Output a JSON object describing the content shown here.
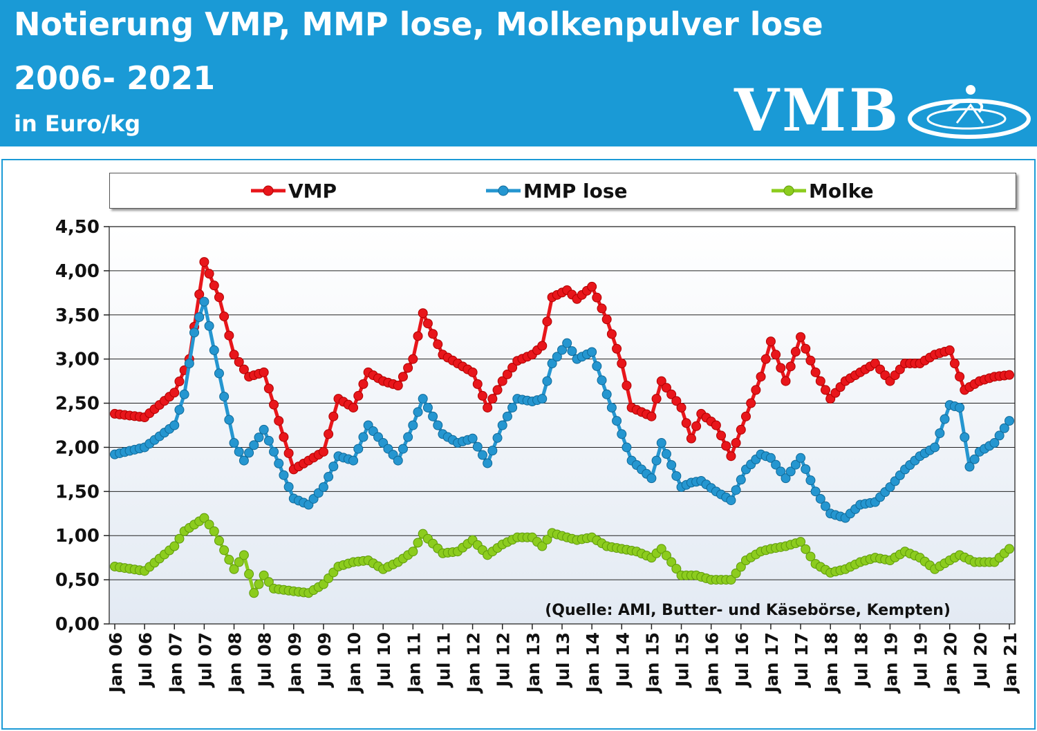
{
  "header": {
    "title_line1": "Notierung VMP, MMP lose, Molkenpulver lose",
    "title_line2": "2006- 2021",
    "unit": "in Euro/kg",
    "logo_text": "VMB",
    "logo_icon": "vmb-swirl-logo-icon",
    "background_color": "#1a9ad6"
  },
  "chart_data": {
    "type": "line",
    "title": "Notierung VMP, MMP lose, Molkenpulver lose 2006- 2021",
    "ylabel": "in Euro/kg",
    "xlabel": "",
    "ylim": [
      0,
      4.5
    ],
    "grid": true,
    "legend_position": "top",
    "x_tick_labels": [
      "Jan 06",
      "Jul 06",
      "Jan 07",
      "Jul 07",
      "Jan 08",
      "Jul 08",
      "Jan 09",
      "Jul 09",
      "Jan 10",
      "Jul 10",
      "Jan 11",
      "Jul 11",
      "Jan 12",
      "Jul 12",
      "Jan 13",
      "Jul 13",
      "Jan 14",
      "Jul 14",
      "Jan 15",
      "Jul 15",
      "Jan 16",
      "Jul 16",
      "Jan 17",
      "Jul 17",
      "Jan 18",
      "Jul 18",
      "Jan 19",
      "Jul 19",
      "Jan 20",
      "Jul 20",
      "Jan 21"
    ],
    "y_tick_labels": [
      "0,00",
      "0,50",
      "1,00",
      "1,50",
      "2,00",
      "2,50",
      "3,00",
      "3,50",
      "4,00",
      "4,50"
    ],
    "annotation": "(Quelle: AMI, Butter- und Käsebörse, Kempten)",
    "series": [
      {
        "name": "VMP",
        "color": "#e8161b",
        "points": [
          [
            "Jan 06",
            2.38
          ],
          [
            "Jul 06",
            2.34
          ],
          [
            "Jan 07",
            2.62
          ],
          [
            "Apr 07",
            3.0
          ],
          [
            "Jul 07",
            4.1
          ],
          [
            "Oct 07",
            3.7
          ],
          [
            "Jan 08",
            3.05
          ],
          [
            "Apr 08",
            2.8
          ],
          [
            "Jul 08",
            2.85
          ],
          [
            "Oct 08",
            2.3
          ],
          [
            "Jan 09",
            1.75
          ],
          [
            "Apr 09",
            1.85
          ],
          [
            "Jul 09",
            1.95
          ],
          [
            "Oct 09",
            2.55
          ],
          [
            "Jan 10",
            2.45
          ],
          [
            "Apr 10",
            2.85
          ],
          [
            "Jul 10",
            2.75
          ],
          [
            "Oct 10",
            2.7
          ],
          [
            "Jan 11",
            3.0
          ],
          [
            "Mar 11",
            3.52
          ],
          [
            "Jul 11",
            3.05
          ],
          [
            "Oct 11",
            2.95
          ],
          [
            "Jan 12",
            2.85
          ],
          [
            "Apr 12",
            2.45
          ],
          [
            "Jul 12",
            2.75
          ],
          [
            "Oct 12",
            2.98
          ],
          [
            "Jan 13",
            3.05
          ],
          [
            "Mar 13",
            3.15
          ],
          [
            "May 13",
            3.7
          ],
          [
            "Aug 13",
            3.78
          ],
          [
            "Oct 13",
            3.68
          ],
          [
            "Jan 14",
            3.82
          ],
          [
            "Apr 14",
            3.45
          ],
          [
            "Jul 14",
            2.95
          ],
          [
            "Sep 14",
            2.45
          ],
          [
            "Jan 15",
            2.35
          ],
          [
            "Mar 15",
            2.75
          ],
          [
            "Jul 15",
            2.45
          ],
          [
            "Sep 15",
            2.1
          ],
          [
            "Nov 15",
            2.38
          ],
          [
            "Feb 16",
            2.25
          ],
          [
            "May 16",
            1.9
          ],
          [
            "Aug 16",
            2.35
          ],
          [
            "Nov 16",
            2.8
          ],
          [
            "Jan 17",
            3.2
          ],
          [
            "Apr 17",
            2.75
          ],
          [
            "Jul 17",
            3.25
          ],
          [
            "Oct 17",
            2.85
          ],
          [
            "Jan 18",
            2.55
          ],
          [
            "Apr 18",
            2.75
          ],
          [
            "Jul 18",
            2.85
          ],
          [
            "Oct 18",
            2.95
          ],
          [
            "Jan 19",
            2.75
          ],
          [
            "Apr 19",
            2.95
          ],
          [
            "Jul 19",
            2.95
          ],
          [
            "Oct 19",
            3.05
          ],
          [
            "Jan 20",
            3.1
          ],
          [
            "Apr 20",
            2.65
          ],
          [
            "Jul 20",
            2.75
          ],
          [
            "Oct 20",
            2.8
          ],
          [
            "Jan 21",
            2.82
          ]
        ]
      },
      {
        "name": "MMP lose",
        "color": "#2596d0",
        "points": [
          [
            "Jan 06",
            1.92
          ],
          [
            "Jul 06",
            2.0
          ],
          [
            "Jan 07",
            2.25
          ],
          [
            "Mar 07",
            2.6
          ],
          [
            "May 07",
            3.3
          ],
          [
            "Jul 07",
            3.65
          ],
          [
            "Sep 07",
            3.1
          ],
          [
            "Jan 08",
            2.05
          ],
          [
            "Mar 08",
            1.85
          ],
          [
            "Jul 08",
            2.2
          ],
          [
            "Sep 08",
            1.95
          ],
          [
            "Jan 09",
            1.42
          ],
          [
            "Apr 09",
            1.35
          ],
          [
            "Jul 09",
            1.55
          ],
          [
            "Oct 09",
            1.9
          ],
          [
            "Jan 10",
            1.85
          ],
          [
            "Apr 10",
            2.25
          ],
          [
            "Jul 10",
            2.05
          ],
          [
            "Oct 10",
            1.85
          ],
          [
            "Jan 11",
            2.25
          ],
          [
            "Mar 11",
            2.55
          ],
          [
            "Jul 11",
            2.15
          ],
          [
            "Oct 11",
            2.05
          ],
          [
            "Jan 12",
            2.1
          ],
          [
            "Apr 12",
            1.82
          ],
          [
            "Jul 12",
            2.25
          ],
          [
            "Oct 12",
            2.55
          ],
          [
            "Jan 13",
            2.52
          ],
          [
            "Mar 13",
            2.55
          ],
          [
            "May 13",
            2.95
          ],
          [
            "Aug 13",
            3.18
          ],
          [
            "Oct 13",
            3.0
          ],
          [
            "Jan 14",
            3.08
          ],
          [
            "Apr 14",
            2.6
          ],
          [
            "Jul 14",
            2.15
          ],
          [
            "Sep 14",
            1.85
          ],
          [
            "Jan 15",
            1.65
          ],
          [
            "Mar 15",
            2.05
          ],
          [
            "Jul 15",
            1.55
          ],
          [
            "Sep 15",
            1.6
          ],
          [
            "Nov 15",
            1.62
          ],
          [
            "Feb 16",
            1.5
          ],
          [
            "May 16",
            1.4
          ],
          [
            "Aug 16",
            1.75
          ],
          [
            "Nov 16",
            1.92
          ],
          [
            "Jan 17",
            1.88
          ],
          [
            "Apr 17",
            1.65
          ],
          [
            "Jul 17",
            1.88
          ],
          [
            "Oct 17",
            1.5
          ],
          [
            "Jan 18",
            1.25
          ],
          [
            "Apr 18",
            1.2
          ],
          [
            "Jul 18",
            1.35
          ],
          [
            "Oct 18",
            1.38
          ],
          [
            "Jan 19",
            1.55
          ],
          [
            "Apr 19",
            1.75
          ],
          [
            "Jul 19",
            1.9
          ],
          [
            "Oct 19",
            2.0
          ],
          [
            "Jan 20",
            2.48
          ],
          [
            "Mar 20",
            2.45
          ],
          [
            "May 20",
            1.78
          ],
          [
            "Jul 20",
            1.95
          ],
          [
            "Oct 20",
            2.05
          ],
          [
            "Jan 21",
            2.3
          ]
        ]
      },
      {
        "name": "Molke",
        "color": "#8ccc1e",
        "points": [
          [
            "Jan 06",
            0.65
          ],
          [
            "Jul 06",
            0.6
          ],
          [
            "Jan 07",
            0.88
          ],
          [
            "Mar 07",
            1.05
          ],
          [
            "Jul 07",
            1.2
          ],
          [
            "Sep 07",
            1.05
          ],
          [
            "Jan 08",
            0.62
          ],
          [
            "Mar 08",
            0.78
          ],
          [
            "May 08",
            0.35
          ],
          [
            "Jul 08",
            0.55
          ],
          [
            "Sep 08",
            0.4
          ],
          [
            "Jan 09",
            0.37
          ],
          [
            "Apr 09",
            0.35
          ],
          [
            "Jul 09",
            0.45
          ],
          [
            "Oct 09",
            0.65
          ],
          [
            "Jan 10",
            0.7
          ],
          [
            "Apr 10",
            0.72
          ],
          [
            "Jul 10",
            0.62
          ],
          [
            "Oct 10",
            0.7
          ],
          [
            "Jan 11",
            0.82
          ],
          [
            "Mar 11",
            1.02
          ],
          [
            "Jul 11",
            0.8
          ],
          [
            "Oct 11",
            0.82
          ],
          [
            "Jan 12",
            0.95
          ],
          [
            "Apr 12",
            0.78
          ],
          [
            "Jul 12",
            0.9
          ],
          [
            "Oct 12",
            0.98
          ],
          [
            "Jan 13",
            0.98
          ],
          [
            "Mar 13",
            0.88
          ],
          [
            "May 13",
            1.03
          ],
          [
            "Aug 13",
            0.98
          ],
          [
            "Oct 13",
            0.95
          ],
          [
            "Jan 14",
            0.98
          ],
          [
            "Apr 14",
            0.88
          ],
          [
            "Jul 14",
            0.85
          ],
          [
            "Oct 14",
            0.82
          ],
          [
            "Jan 15",
            0.75
          ],
          [
            "Mar 15",
            0.85
          ],
          [
            "Jul 15",
            0.55
          ],
          [
            "Oct 15",
            0.55
          ],
          [
            "Jan 16",
            0.5
          ],
          [
            "May 16",
            0.5
          ],
          [
            "Aug 16",
            0.72
          ],
          [
            "Nov 16",
            0.82
          ],
          [
            "Jan 17",
            0.85
          ],
          [
            "Apr 17",
            0.88
          ],
          [
            "Jul 17",
            0.93
          ],
          [
            "Oct 17",
            0.68
          ],
          [
            "Jan 18",
            0.58
          ],
          [
            "Apr 18",
            0.62
          ],
          [
            "Jul 18",
            0.7
          ],
          [
            "Oct 18",
            0.75
          ],
          [
            "Jan 19",
            0.72
          ],
          [
            "Apr 19",
            0.82
          ],
          [
            "Jul 19",
            0.75
          ],
          [
            "Oct 19",
            0.62
          ],
          [
            "Jan 20",
            0.72
          ],
          [
            "Mar 20",
            0.78
          ],
          [
            "Jun 20",
            0.7
          ],
          [
            "Oct 20",
            0.7
          ],
          [
            "Jan 21",
            0.85
          ]
        ]
      }
    ]
  }
}
